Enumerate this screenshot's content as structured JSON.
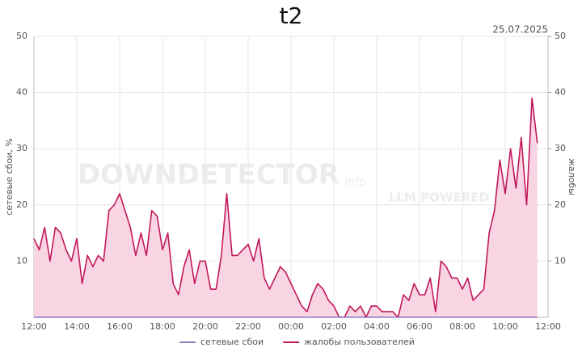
{
  "chart_data": {
    "type": "line",
    "title": "t2",
    "date": "25.07.2025",
    "watermark": [
      "DOWNDETECTOR",
      ".info",
      "LLM POWERED"
    ],
    "ylabel": "сетевые сбои, %",
    "y2label": "жалобы",
    "x": [
      0,
      0.25,
      0.5,
      0.75,
      1,
      1.25,
      1.5,
      1.75,
      2,
      2.25,
      2.5,
      2.75,
      3,
      3.25,
      3.5,
      3.75,
      4,
      4.25,
      4.5,
      4.75,
      5,
      5.25,
      5.5,
      5.75,
      6,
      6.25,
      6.5,
      6.75,
      7,
      7.25,
      7.5,
      7.75,
      8,
      8.25,
      8.5,
      8.75,
      9,
      9.25,
      9.5,
      9.75,
      10,
      10.25,
      10.5,
      10.75,
      11,
      11.25,
      11.5,
      11.75,
      12,
      12.25,
      12.5,
      12.75,
      13,
      13.25,
      13.5,
      13.75,
      14,
      14.25,
      14.5,
      14.75,
      15,
      15.25,
      15.5,
      15.75,
      16,
      16.25,
      16.5,
      16.75,
      17,
      17.25,
      17.5,
      17.75,
      18,
      18.25,
      18.5,
      18.75,
      19,
      19.25,
      19.5,
      19.75,
      20,
      20.25,
      20.5,
      20.75,
      21,
      21.25,
      21.5,
      21.75,
      22,
      22.25,
      22.5,
      22.75,
      23,
      23.25,
      23.5
    ],
    "xlim": [
      0,
      24
    ],
    "xticks": [
      {
        "value": 0,
        "label": "12:00"
      },
      {
        "value": 2,
        "label": "14:00"
      },
      {
        "value": 4,
        "label": "16:00"
      },
      {
        "value": 6,
        "label": "18:00"
      },
      {
        "value": 8,
        "label": "20:00"
      },
      {
        "value": 10,
        "label": "22:00"
      },
      {
        "value": 12,
        "label": "00:00"
      },
      {
        "value": 14,
        "label": "02:00"
      },
      {
        "value": 16,
        "label": "04:00"
      },
      {
        "value": 18,
        "label": "06:00"
      },
      {
        "value": 20,
        "label": "08:00"
      },
      {
        "value": 22,
        "label": "10:00"
      },
      {
        "value": 24,
        "label": "12:00"
      }
    ],
    "ylim": [
      0,
      50
    ],
    "yticks": [
      10,
      20,
      30,
      40,
      50
    ],
    "y2lim": [
      0,
      50
    ],
    "y2ticks": [
      10,
      20,
      30,
      40,
      50
    ],
    "grid": true,
    "legend": "bottom",
    "series": [
      {
        "name": "сетевые сбои",
        "color": "#8e7cc3",
        "values": [
          0,
          0,
          0,
          0,
          0,
          0,
          0,
          0,
          0,
          0,
          0,
          0,
          0,
          0,
          0,
          0,
          0,
          0,
          0,
          0,
          0,
          0,
          0,
          0,
          0,
          0,
          0,
          0,
          0,
          0,
          0,
          0,
          0,
          0,
          0,
          0,
          0,
          0,
          0,
          0,
          0,
          0,
          0,
          0,
          0,
          0,
          0,
          0,
          0,
          0,
          0,
          0,
          0,
          0,
          0,
          0,
          0,
          0,
          0,
          0,
          0,
          0,
          0,
          0,
          0,
          0,
          0,
          0,
          0,
          0,
          0,
          0,
          0,
          0,
          0,
          0,
          0,
          0,
          0,
          0,
          0,
          0,
          0,
          0,
          0,
          0,
          0,
          0,
          0,
          0,
          0,
          0,
          0,
          0,
          0
        ]
      },
      {
        "name": "жалобы пользователей",
        "color": "#c2185b",
        "fill": "#f9d4e2",
        "axis": "y2",
        "values": [
          14,
          12,
          16,
          10,
          16,
          15,
          12,
          10,
          14,
          6,
          11,
          9,
          11,
          10,
          19,
          20,
          22,
          19,
          16,
          11,
          15,
          11,
          19,
          18,
          12,
          15,
          6,
          4,
          9,
          12,
          6,
          10,
          10,
          5,
          5,
          11,
          22,
          11,
          11,
          12,
          13,
          10,
          14,
          7,
          5,
          7,
          9,
          8,
          6,
          4,
          2,
          1,
          4,
          6,
          5,
          3,
          2,
          0,
          0,
          2,
          1,
          2,
          0,
          2,
          2,
          1,
          1,
          1,
          0,
          4,
          3,
          6,
          4,
          4,
          7,
          1,
          10,
          9,
          7,
          7,
          5,
          7,
          3,
          4,
          5,
          15,
          19,
          28,
          22,
          30,
          23,
          32,
          20,
          39,
          31
        ]
      }
    ]
  }
}
